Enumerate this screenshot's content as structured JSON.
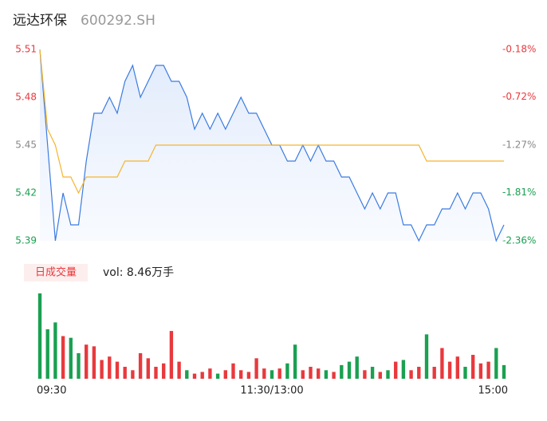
{
  "chart_data": {
    "type": "intraday",
    "title": "远达环保",
    "subtitle": "600292.SH",
    "volume_label": "日成交量",
    "volume_text": "vol: 8.46万手",
    "x": [
      0,
      4,
      8,
      12,
      16,
      20,
      24,
      28,
      32,
      36,
      40,
      44,
      48,
      52,
      56,
      60,
      64,
      68,
      72,
      76,
      80,
      84,
      88,
      92,
      96,
      100,
      104,
      108,
      112,
      116,
      120,
      124,
      128,
      132,
      136,
      140,
      144,
      148,
      152,
      156,
      160,
      164,
      168,
      172,
      176,
      180,
      184,
      188,
      192,
      196,
      200,
      204,
      208,
      212,
      216,
      220,
      224,
      228,
      232,
      236,
      240
    ],
    "xlim": [
      0,
      240
    ],
    "xticks": [
      {
        "value": 0,
        "label": "09:30"
      },
      {
        "value": 120,
        "label": "11:30/13:00"
      },
      {
        "value": 240,
        "label": "15:00"
      }
    ],
    "ylim": [
      5.39,
      5.51
    ],
    "yticks": [
      5.51,
      5.48,
      5.45,
      5.42,
      5.39
    ],
    "ytick_colors": [
      "#e8393d",
      "#e8393d",
      "#888888",
      "#1aa051",
      "#1aa051"
    ],
    "y2lim": [
      -2.36,
      -0.18
    ],
    "y2ticks": [
      {
        "value": -0.18,
        "label": "-0.18%"
      },
      {
        "value": -0.72,
        "label": "-0.72%"
      },
      {
        "value": -1.27,
        "label": "-1.27%"
      },
      {
        "value": -1.81,
        "label": "-1.81%"
      },
      {
        "value": -2.36,
        "label": "-2.36%"
      }
    ],
    "series": [
      {
        "name": "price",
        "color": "#3b7be0",
        "values": [
          5.51,
          5.45,
          5.39,
          5.42,
          5.4,
          5.4,
          5.44,
          5.47,
          5.47,
          5.48,
          5.47,
          5.49,
          5.5,
          5.48,
          5.49,
          5.5,
          5.5,
          5.49,
          5.49,
          5.48,
          5.46,
          5.47,
          5.46,
          5.47,
          5.46,
          5.47,
          5.48,
          5.47,
          5.47,
          5.46,
          5.45,
          5.45,
          5.44,
          5.44,
          5.45,
          5.44,
          5.45,
          5.44,
          5.44,
          5.43,
          5.43,
          5.42,
          5.41,
          5.42,
          5.41,
          5.42,
          5.42,
          5.4,
          5.4,
          5.39,
          5.4,
          5.4,
          5.41,
          5.41,
          5.42,
          5.41,
          5.42,
          5.42,
          5.41,
          5.39,
          5.4
        ]
      },
      {
        "name": "average",
        "color": "#f5b52e",
        "values": [
          5.51,
          5.46,
          5.45,
          5.43,
          5.43,
          5.42,
          5.43,
          5.43,
          5.43,
          5.43,
          5.43,
          5.44,
          5.44,
          5.44,
          5.44,
          5.45,
          5.45,
          5.45,
          5.45,
          5.45,
          5.45,
          5.45,
          5.45,
          5.45,
          5.45,
          5.45,
          5.45,
          5.45,
          5.45,
          5.45,
          5.45,
          5.45,
          5.45,
          5.45,
          5.45,
          5.45,
          5.45,
          5.45,
          5.45,
          5.45,
          5.45,
          5.45,
          5.45,
          5.45,
          5.45,
          5.45,
          5.45,
          5.45,
          5.45,
          5.45,
          5.44,
          5.44,
          5.44,
          5.44,
          5.44,
          5.44,
          5.44,
          5.44,
          5.44,
          5.44,
          5.44
        ]
      }
    ],
    "volume": {
      "ylim": [
        0,
        100
      ],
      "values": [
        100,
        58,
        66,
        50,
        48,
        30,
        40,
        38,
        22,
        26,
        20,
        14,
        10,
        30,
        24,
        14,
        18,
        56,
        20,
        10,
        6,
        8,
        12,
        6,
        10,
        18,
        10,
        8,
        24,
        12,
        10,
        12,
        18,
        40,
        10,
        14,
        12,
        10,
        8,
        16,
        20,
        26,
        10,
        14,
        8,
        10,
        20,
        22,
        10,
        14,
        52,
        14,
        36,
        20,
        26,
        14,
        28,
        18,
        20,
        36,
        16
      ],
      "colors": [
        "#1aa051",
        "#1aa051",
        "#1aa051",
        "#e8393d",
        "#1aa051",
        "#1aa051",
        "#e8393d",
        "#e8393d",
        "#e8393d",
        "#e8393d",
        "#e8393d",
        "#e8393d",
        "#e8393d",
        "#e8393d",
        "#e8393d",
        "#e8393d",
        "#e8393d",
        "#e8393d",
        "#e8393d",
        "#1aa051",
        "#e8393d",
        "#e8393d",
        "#e8393d",
        "#1aa051",
        "#e8393d",
        "#e8393d",
        "#e8393d",
        "#e8393d",
        "#e8393d",
        "#e8393d",
        "#1aa051",
        "#e8393d",
        "#1aa051",
        "#1aa051",
        "#e8393d",
        "#e8393d",
        "#e8393d",
        "#1aa051",
        "#e8393d",
        "#1aa051",
        "#1aa051",
        "#1aa051",
        "#e8393d",
        "#1aa051",
        "#e8393d",
        "#1aa051",
        "#e8393d",
        "#1aa051",
        "#e8393d",
        "#e8393d",
        "#1aa051",
        "#e8393d",
        "#e8393d",
        "#e8393d",
        "#e8393d",
        "#1aa051",
        "#e8393d",
        "#e8393d",
        "#e8393d",
        "#1aa051",
        "#1aa051"
      ]
    }
  }
}
